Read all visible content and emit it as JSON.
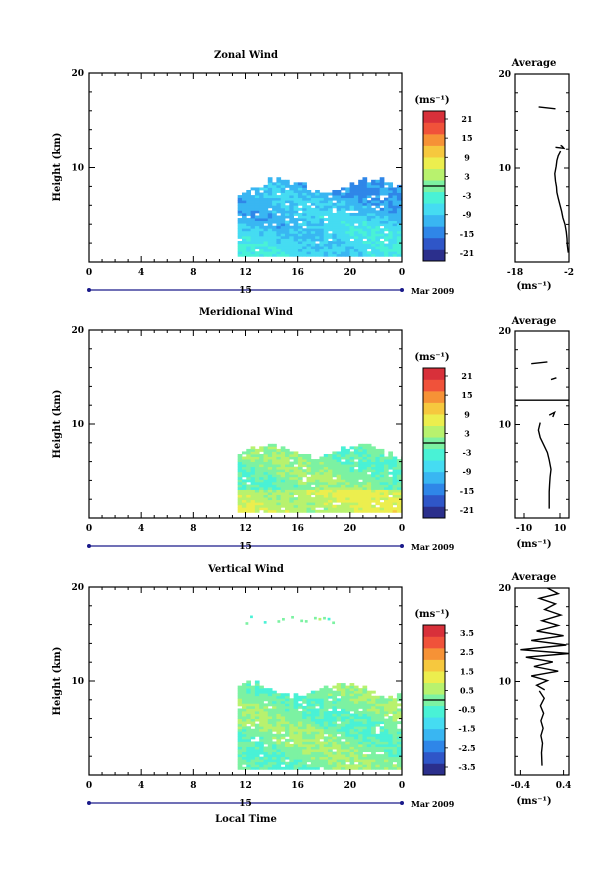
{
  "x_axis": {
    "ticks": [
      "0",
      "4",
      "8",
      "12",
      "16",
      "20",
      "0"
    ],
    "date_label": "15",
    "month_label": "Mar 2009",
    "title": "Local Time"
  },
  "colorbar_unit": "(ms⁻¹)",
  "profile_unit": "(ms⁻¹)",
  "profile_title": "Average",
  "y_label": "Height (km)",
  "colormap": [
    "#2b2f8c",
    "#2f56c8",
    "#2f86e8",
    "#39b6f2",
    "#45dcf2",
    "#49f2d6",
    "#7cf2a2",
    "#b8f26e",
    "#ecee4e",
    "#f6c83e",
    "#f69236",
    "#f0523a",
    "#d8303a"
  ],
  "chart_data": [
    {
      "type": "heatmap",
      "title": "Zonal Wind",
      "ylabel": "Height (km)",
      "xlabel": "Local Time",
      "xlim": [
        0,
        24
      ],
      "ylim": [
        0,
        20
      ],
      "y_ticks": [
        "20",
        "10"
      ],
      "colorbar_ticks": [
        "21",
        "15",
        "9",
        "3",
        "-3",
        "-9",
        "-15",
        "-21"
      ],
      "colorbar_range": [
        -24,
        24
      ],
      "data_region": {
        "x": [
          11.4,
          24
        ],
        "y": [
          0,
          8
        ]
      },
      "field_description": "easterly winds, mostly -3 to -15 ms-1",
      "profile": {
        "xlim": [
          -18,
          -2
        ],
        "x_ticks": [
          "-18",
          "-2"
        ],
        "y_ticks": [
          "20",
          "10"
        ],
        "segments": [
          {
            "x": [
              -11,
              -6
            ],
            "y": [
              16.5,
              16.3
            ]
          },
          {
            "x": [
              -6,
              -3.5,
              -4,
              -4.5
            ],
            "y": [
              12.2,
              12.1,
              12.3,
              12.4
            ]
          },
          {
            "x": [
              -4.5,
              -5.2,
              -5.6,
              -5.8,
              -6.2,
              -6.0,
              -5.7,
              -5.6,
              -5.2,
              -4.7,
              -4.2,
              -3.8,
              -3.2,
              -2.8,
              -2.6,
              -2.5,
              -2.3,
              -2.2
            ],
            "y": [
              11.8,
              11.3,
              10.8,
              10.2,
              9.4,
              8.6,
              8.0,
              7.4,
              6.8,
              6.1,
              5.4,
              4.7,
              4.0,
              3.2,
              2.5,
              1.8,
              1.2,
              1.0
            ]
          }
        ]
      }
    },
    {
      "type": "heatmap",
      "title": "Meridional Wind",
      "ylabel": "Height (km)",
      "xlabel": "Local Time",
      "xlim": [
        0,
        24
      ],
      "ylim": [
        0,
        20
      ],
      "y_ticks": [
        "20",
        "10"
      ],
      "colorbar_ticks": [
        "21",
        "15",
        "9",
        "3",
        "-3",
        "-9",
        "-15",
        "-21"
      ],
      "colorbar_range": [
        -24,
        24
      ],
      "data_region": {
        "x": [
          11.4,
          24
        ],
        "y": [
          0,
          7
        ]
      },
      "field_description": "weak winds, mostly -3 to 3 ms-1 with positive values near 2-3 km",
      "profile": {
        "xlim": [
          -15,
          15
        ],
        "x_ticks": [
          "-10",
          "10"
        ],
        "y_ticks": [
          "20",
          "10"
        ],
        "segments": [
          {
            "x": [
              -6,
              3
            ],
            "y": [
              16.5,
              16.7
            ]
          },
          {
            "x": [
              5,
              8
            ],
            "y": [
              14.8,
              15.0
            ]
          },
          {
            "x": [
              -15,
              15
            ],
            "y": [
              12.6,
              12.6
            ]
          },
          {
            "x": [
              4,
              7,
              6
            ],
            "y": [
              11.0,
              11.3,
              10.8
            ]
          },
          {
            "x": [
              -1,
              -2,
              -1,
              1,
              3,
              4,
              5,
              4.5,
              4.2,
              4.0,
              4.0
            ],
            "y": [
              10.2,
              9.4,
              8.6,
              7.8,
              7.0,
              6.2,
              5.2,
              4.4,
              3.6,
              2.8,
              1.0
            ]
          }
        ]
      }
    },
    {
      "type": "heatmap",
      "title": "Vertical Wind",
      "ylabel": "Height (km)",
      "xlabel": "Local Time",
      "xlim": [
        0,
        24
      ],
      "ylim": [
        0,
        20
      ],
      "y_ticks": [
        "20",
        "10"
      ],
      "colorbar_ticks": [
        "3.5",
        "2.5",
        "1.5",
        "0.5",
        "-0.5",
        "-1.5",
        "-2.5",
        "-3.5"
      ],
      "colorbar_range": [
        -4,
        4
      ],
      "data_region": {
        "x": [
          11.4,
          24
        ],
        "y": [
          0,
          9
        ]
      },
      "field_description": "small vertical velocities, mostly -0.5 to 0.5 ms-1",
      "profile": {
        "xlim": [
          -0.5,
          0.5
        ],
        "x_ticks": [
          "-0.4",
          "0.4"
        ],
        "y_ticks": [
          "20",
          "10"
        ],
        "segments": [
          {
            "x": [
              0.1,
              0.3,
              -0.05,
              0.25,
              0.05,
              0.35,
              0.0,
              0.3,
              -0.1,
              0.4,
              -0.2,
              0.45,
              -0.4,
              0.5,
              -0.3,
              0.2,
              -0.15,
              0.3,
              -0.2,
              0.1,
              -0.1,
              0.05
            ],
            "y": [
              20,
              19.4,
              18.9,
              18.3,
              17.7,
              17.1,
              16.5,
              16.0,
              15.4,
              14.9,
              14.4,
              13.9,
              13.4,
              13.0,
              12.6,
              12.1,
              11.6,
              11.1,
              10.6,
              10.1,
              9.6,
              9.1
            ]
          },
          {
            "x": [
              -0.05,
              0.04,
              -0.03,
              0.03,
              -0.02,
              0.02,
              -0.02,
              0.01,
              -0.01,
              0.0
            ],
            "y": [
              9.0,
              8.2,
              7.4,
              6.6,
              5.8,
              5.0,
              4.2,
              3.4,
              2.4,
              1.0
            ]
          }
        ]
      }
    }
  ]
}
